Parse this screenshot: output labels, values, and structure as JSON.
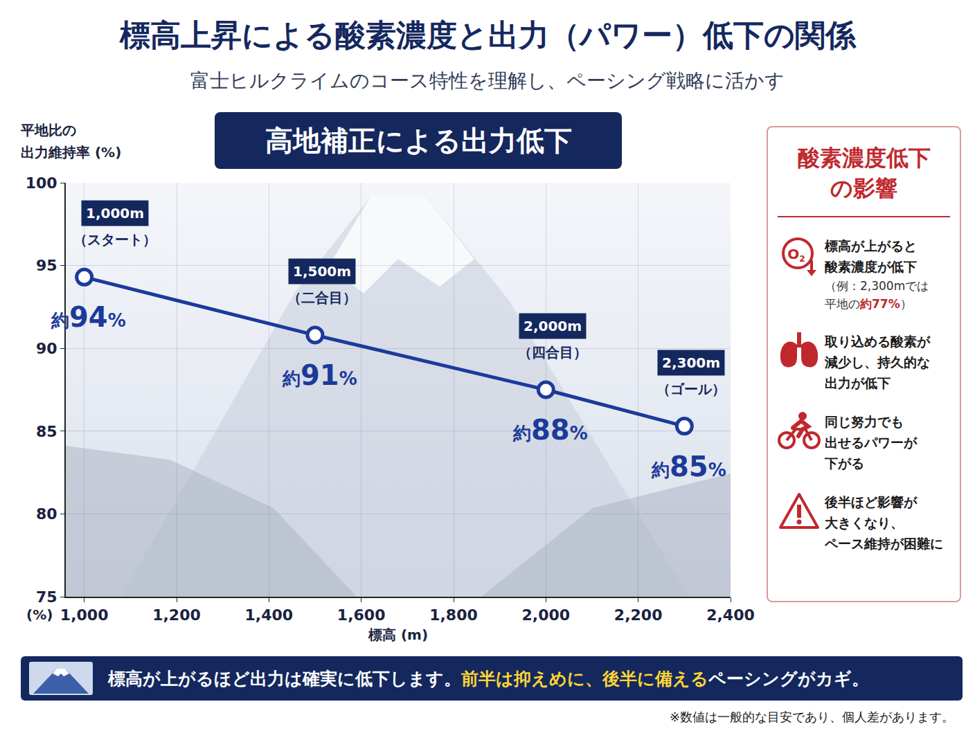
{
  "title": "標高上昇による酸素濃度と出力（パワー）低下の関係",
  "subtitle": "富士ヒルクライムのコース特性を理解し、ペーシング戦略に活かす",
  "chart_data": {
    "type": "line",
    "title": "高地補正による出力低下",
    "xlabel": "標高 (m)",
    "ylabel": "平地比の\n出力維持率 (%)",
    "y_unit": "(%)",
    "x": [
      1000,
      1500,
      2000,
      2300
    ],
    "values": [
      94.3,
      90.8,
      87.5,
      85.3
    ],
    "value_labels": [
      "約94%",
      "約91%",
      "約88%",
      "約85%"
    ],
    "point_labels": [
      "1,000m",
      "1,500m",
      "2,000m",
      "2,300m"
    ],
    "point_notes": [
      "（スタート）",
      "（二合目）",
      "（四合目）",
      "（ゴール）"
    ],
    "color": "#1b3a9a",
    "marker": "circle",
    "data_labels": true,
    "grid": true,
    "xlim": [
      960,
      2400
    ],
    "xticks": [
      {
        "value": 1000,
        "label": "1,000"
      },
      {
        "value": 1200,
        "label": "1,200"
      },
      {
        "value": 1400,
        "label": "1,400"
      },
      {
        "value": 1600,
        "label": "1,600"
      },
      {
        "value": 1800,
        "label": "1,800"
      },
      {
        "value": 2000,
        "label": "2,000"
      },
      {
        "value": 2200,
        "label": "2,200"
      },
      {
        "value": 2400,
        "label": "2,400"
      }
    ],
    "ylim": [
      75,
      100
    ],
    "yticks": [
      75,
      80,
      85,
      90,
      95,
      100
    ]
  },
  "side_panel": {
    "title": "酸素濃度低下\nの影響",
    "items": [
      {
        "icon_text": "O2",
        "text": "標高が上がると\n酸素濃度が低下",
        "note": {
          "text_before": "（例：2,300mでは\n平地の",
          "highlight": "約77%",
          "text_after": "）"
        }
      },
      {
        "text": "取り込める酸素が\n減少し、持久的な\n出力が低下"
      },
      {
        "text": "同じ努力でも\n出せるパワーが\n下がる"
      },
      {
        "text": "後半ほど影響が\n大きくなり、\nペース維持が困難に"
      }
    ]
  },
  "banner": {
    "text_before": "標高が上がるほど出力は確実に低下します。",
    "highlight": "前半は抑えめに、後半に備える",
    "text_after": "ペーシングがカギ。"
  },
  "footnote": "※数値は一般的な目安であり、個人差があります。"
}
